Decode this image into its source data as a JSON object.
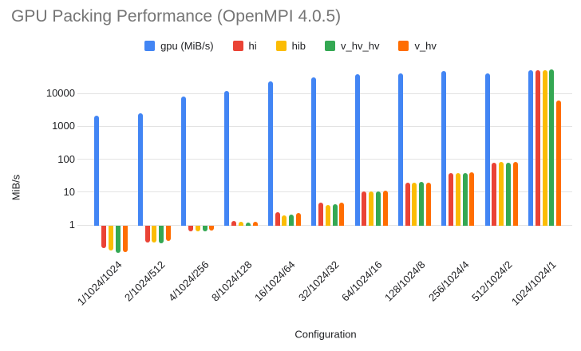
{
  "chart_data": {
    "type": "bar",
    "title": "GPU Packing Performance (OpenMPI 4.0.5)",
    "title_color": "#757575",
    "xlabel": "Configuration",
    "ylabel": "MiB/s",
    "y_scale": "log",
    "y_ticks": [
      1,
      10,
      100,
      1000,
      10000
    ],
    "grid": true,
    "legend_position": "top",
    "categories": [
      "1/1024/1024",
      "2/1024/512",
      "4/1024/256",
      "8/1024/128",
      "16/1024/64",
      "32/1024/32",
      "64/1024/16",
      "128/1024/8",
      "256/1024/4",
      "512/1024/2",
      "1024/1024/1"
    ],
    "series": [
      {
        "name": "gpu (MiB/s)",
        "color": "#4285F4",
        "values": [
          2100,
          2500,
          7800,
          12000,
          23000,
          31000,
          39000,
          41000,
          49000,
          41000,
          51000
        ]
      },
      {
        "name": "hi",
        "color": "#EA4335",
        "values": [
          0.2,
          0.29,
          0.65,
          1.3,
          2.4,
          4.7,
          10.2,
          19.5,
          37,
          77,
          51000
        ]
      },
      {
        "name": "hib",
        "color": "#FBBC04",
        "values": [
          0.17,
          0.29,
          0.65,
          1.25,
          2.0,
          4.1,
          10.2,
          19.5,
          37,
          82,
          50000
        ]
      },
      {
        "name": "v_hv_hv",
        "color": "#34A853",
        "values": [
          0.14,
          0.27,
          0.65,
          1.2,
          2.1,
          4.3,
          10.5,
          20,
          37,
          79,
          53000
        ]
      },
      {
        "name": "v_hv",
        "color": "#FF6D01",
        "values": [
          0.15,
          0.33,
          0.68,
          1.25,
          2.3,
          4.8,
          10.8,
          19.5,
          40,
          80,
          6200
        ]
      }
    ]
  }
}
